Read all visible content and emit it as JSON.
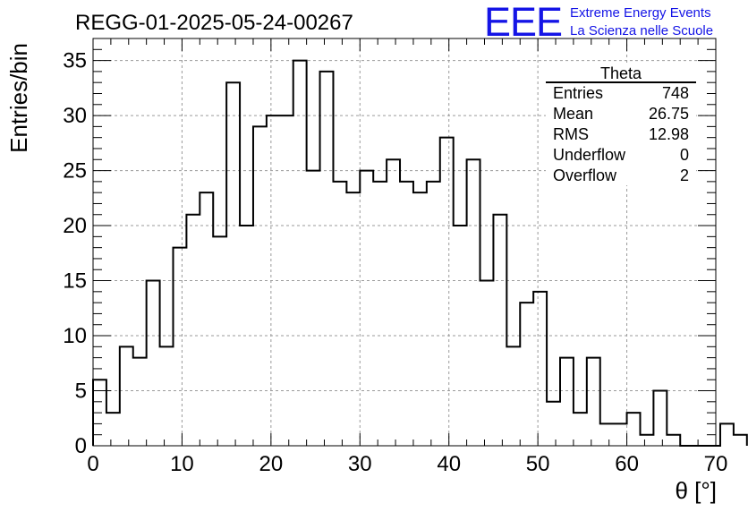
{
  "chart_data": {
    "type": "bar",
    "title": "REGG-01-2025-05-24-00267",
    "xlabel": "θ [°]",
    "ylabel": "Entries/bin",
    "xlim": [
      0,
      70
    ],
    "ylim": [
      0,
      37
    ],
    "bin_width": 1.5,
    "x_ticks": [
      "0",
      "10",
      "20",
      "30",
      "40",
      "50",
      "60",
      "70"
    ],
    "y_ticks": [
      "0",
      "5",
      "10",
      "15",
      "20",
      "25",
      "30",
      "35"
    ],
    "grid": true,
    "histogram_style": "step",
    "values": [
      6,
      3,
      9,
      8,
      15,
      9,
      18,
      21,
      23,
      19,
      33,
      20,
      29,
      30,
      30,
      35,
      25,
      34,
      24,
      23,
      25,
      24,
      26,
      24,
      23,
      24,
      28,
      20,
      26,
      15,
      21,
      9,
      13,
      14,
      4,
      8,
      3,
      8,
      2,
      2,
      3,
      1,
      5,
      1,
      0,
      0,
      0,
      2,
      1
    ]
  },
  "stats_box": {
    "name": "Theta",
    "rows": [
      {
        "label": "Entries",
        "value": "748"
      },
      {
        "label": "Mean",
        "value": "26.75"
      },
      {
        "label": "RMS",
        "value": "12.98"
      },
      {
        "label": "Underflow",
        "value": "0"
      },
      {
        "label": "Overflow",
        "value": "2"
      }
    ]
  },
  "logo": {
    "mark": "EEE",
    "line1": "Extreme Energy Events",
    "line2": "La Scienza nelle Scuole",
    "color": "#1414e6"
  }
}
